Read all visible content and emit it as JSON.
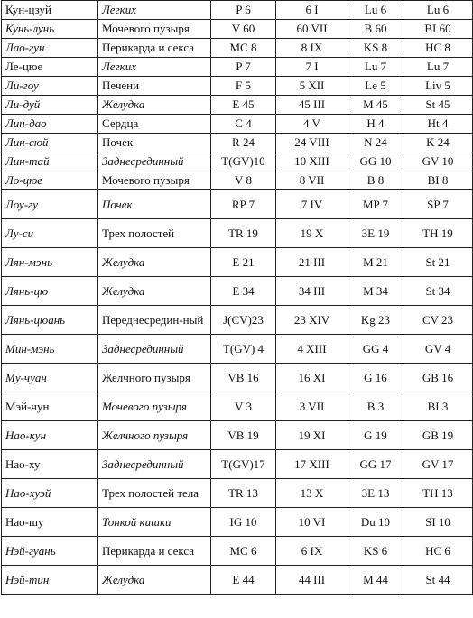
{
  "rows": [
    [
      "Кун-цзуй",
      "Легких",
      "P 6",
      "6 I",
      "Lu 6",
      "Lu 6"
    ],
    [
      "Кунь-лунь",
      "Мочевого пузыря",
      "V 60",
      "60 VII",
      "B 60",
      "BI 60"
    ],
    [
      "Лао-гун",
      "Перикарда и секса",
      "MC 8",
      "8 IX",
      "KS 8",
      "HC 8"
    ],
    [
      "Ле-цюе",
      "Легких",
      "P 7",
      "7 I",
      "Lu 7",
      "Lu 7"
    ],
    [
      "Ли-гоу",
      "Печени",
      "F 5",
      "5 XII",
      "Le 5",
      "Liv 5"
    ],
    [
      "Ли-дуй",
      "Желудка",
      "E 45",
      "45 III",
      "M 45",
      "St 45"
    ],
    [
      "Лин-дао",
      "Сердца",
      "C 4",
      "4 V",
      "H 4",
      "Ht 4"
    ],
    [
      "Лин-сюй",
      "Почек",
      "R 24",
      "24 VIII",
      "N 24",
      "K 24"
    ],
    [
      "Лин-тай",
      "Заднесрединный",
      "T(GV)10",
      "10 XIII",
      "GG 10",
      "GV 10"
    ],
    [
      "Ло-цюе",
      "Мочевого пузыря",
      "V 8",
      "8 VII",
      "B 8",
      "BI 8"
    ],
    [
      "Лоу-гу",
      "Почек",
      "RP 7",
      "7 IV",
      "MP 7",
      "SP 7"
    ],
    [
      "Лу-си",
      "Трех полостей",
      "TR 19",
      "19 X",
      "3E 19",
      "TH 19"
    ],
    [
      "Лян-мэнь",
      "Желудка",
      "E 21",
      "21 III",
      "M 21",
      "St 21"
    ],
    [
      "Лянь-цю",
      "Желудка",
      "E 34",
      "34 III",
      "M 34",
      "St 34"
    ],
    [
      "Лянь-цюань",
      "Переднесредин-ный",
      "J(CV)23",
      "23 XIV",
      "Kg 23",
      "CV 23"
    ],
    [
      "Мин-мэнь",
      "Заднесрединный",
      "T(GV) 4",
      "4 XIII",
      "GG 4",
      "GV 4"
    ],
    [
      "Му-чуан",
      "Желчного пузыря",
      "VB 16",
      "16 XI",
      "G 16",
      "GB 16"
    ],
    [
      "Мэй-чун",
      "Мочевого пузыря",
      "V 3",
      "3 VII",
      "B 3",
      "BI 3"
    ],
    [
      "Нао-кун",
      "Желчного пузыря",
      "VB 19",
      "19 XI",
      "G 19",
      "GB 19"
    ],
    [
      "Нао-ху",
      "Заднесрединный",
      "T(GV)17",
      "17 XIII",
      "GG 17",
      "GV 17"
    ],
    [
      "Нао-хуэй",
      "Трех полостей тела",
      "TR 13",
      "13 X",
      "3E 13",
      "TH 13"
    ],
    [
      "Нао-шу",
      "Тонкой кишки",
      "IG 10",
      "10 VI",
      "Du 10",
      "SI 10"
    ],
    [
      "Нэй-гуань",
      "Перикарда и секса",
      "MC 6",
      "6 IX",
      "KS 6",
      "HC 6"
    ],
    [
      "Нэй-тин",
      "Желудка",
      "E 44",
      "44 III",
      "M 44",
      "St 44"
    ]
  ]
}
